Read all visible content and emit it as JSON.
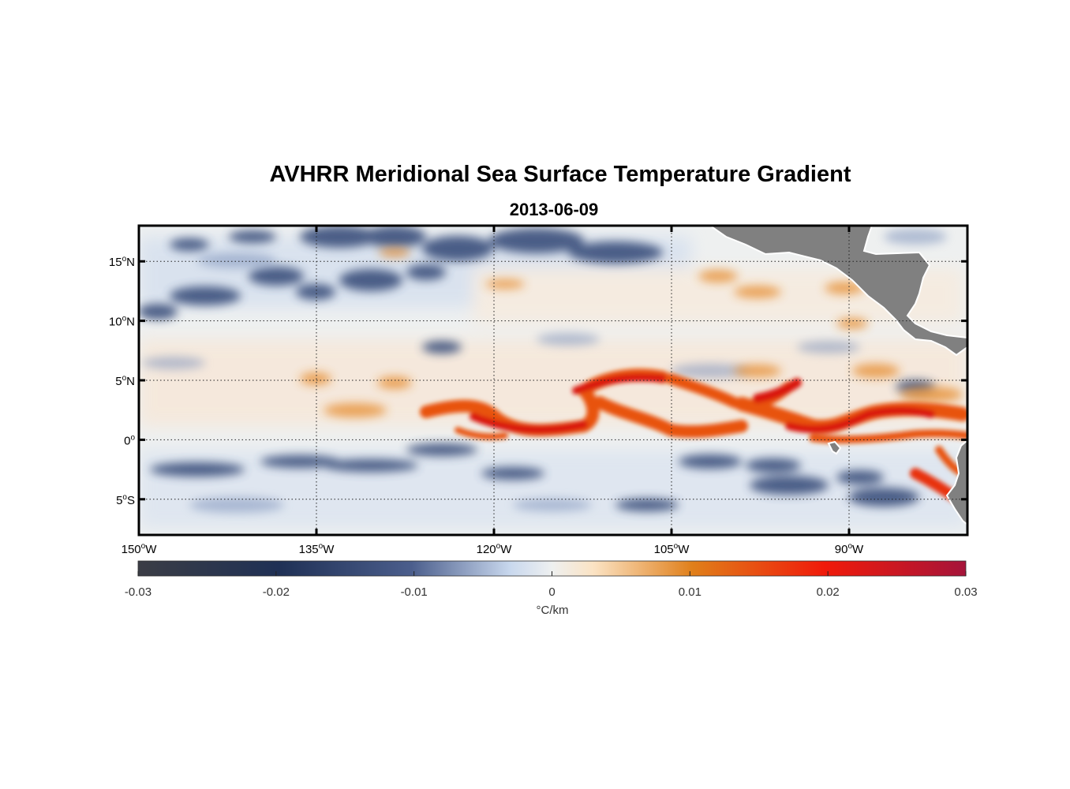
{
  "chart_data": {
    "type": "heatmap",
    "title": "AVHRR Meridional Sea Surface Temperature Gradient",
    "subtitle": "2013-06-09",
    "projection": "equirectangular",
    "lon_range": [
      -150,
      -80
    ],
    "lat_range": [
      -8,
      18
    ],
    "grid": true,
    "x_ticks": [
      {
        "value": -150,
        "deg": "150",
        "hemi": "W"
      },
      {
        "value": -135,
        "deg": "135",
        "hemi": "W"
      },
      {
        "value": -120,
        "deg": "120",
        "hemi": "W"
      },
      {
        "value": -105,
        "deg": "105",
        "hemi": "W"
      },
      {
        "value": -90,
        "deg": "90",
        "hemi": "W"
      }
    ],
    "y_ticks": [
      {
        "value": 15,
        "deg": "15",
        "hemi": "N"
      },
      {
        "value": 10,
        "deg": "10",
        "hemi": "N"
      },
      {
        "value": 5,
        "deg": "5",
        "hemi": "N"
      },
      {
        "value": 0,
        "deg": "0",
        "hemi": ""
      },
      {
        "value": -5,
        "deg": "5",
        "hemi": "S"
      }
    ],
    "colorbar": {
      "label": "°C/km",
      "range": [
        -0.03,
        0.03
      ],
      "ticks": [
        {
          "value": -0.03,
          "label": "-0.03"
        },
        {
          "value": -0.02,
          "label": "-0.02"
        },
        {
          "value": -0.01,
          "label": "-0.01"
        },
        {
          "value": 0,
          "label": "0"
        },
        {
          "value": 0.01,
          "label": "0.01"
        },
        {
          "value": 0.02,
          "label": "0.02"
        },
        {
          "value": 0.03,
          "label": "0.03"
        }
      ],
      "colors": [
        "#3b3d45",
        "#1f3055",
        "#4b5e8c",
        "#c9d8ee",
        "#eef0f0",
        "#fbe3c4",
        "#e07f1a",
        "#f01a0a",
        "#a5143a"
      ]
    },
    "features": [
      {
        "name": "equatorial-front",
        "sign": "positive",
        "lat_approx": 2,
        "lon_extent": [
          -128,
          -80
        ]
      },
      {
        "name": "north-negative-band",
        "sign": "negative",
        "lat_approx": 14,
        "lon_extent": [
          -150,
          -110
        ]
      },
      {
        "name": "south-negative-band",
        "sign": "negative",
        "lat_approx": -3,
        "lon_extent": [
          -150,
          -82
        ]
      }
    ],
    "land_color": "#808080"
  }
}
